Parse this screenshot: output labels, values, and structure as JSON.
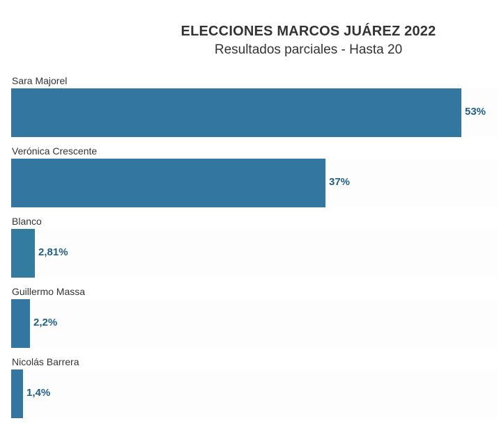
{
  "chart_data": {
    "type": "bar",
    "orientation": "horizontal",
    "title": "ELECCIONES MARCOS JUÁREZ 2022",
    "subtitle": "Resultados parciales - Hasta 20",
    "xlim": [
      0,
      53
    ],
    "categories": [
      "Sara Majorel",
      "Verónica Crescente",
      "Blanco",
      "Guillermo Massa",
      "Nicolás Barrera"
    ],
    "values": [
      53,
      37,
      2.81,
      2.2,
      1.4
    ],
    "value_labels": [
      "53%",
      "37%",
      "2,81%",
      "2,2%",
      "1,4%"
    ],
    "bar_colors": [
      "#3376a0",
      "#3376a0",
      "#337c9f",
      "#3376a0",
      "#3376a0"
    ],
    "value_label_color": "#1f5f8b"
  }
}
